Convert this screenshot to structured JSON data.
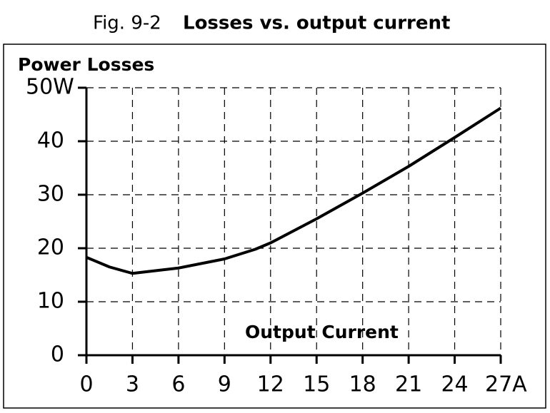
{
  "chart_data": {
    "type": "line",
    "figure_label": "Fig. 9-2",
    "title": "Losses vs. output current",
    "y_label": "Power Losses",
    "x_label": "Output Current",
    "x": [
      0,
      1.5,
      3,
      6,
      9,
      11,
      12,
      15,
      18,
      21,
      24,
      27
    ],
    "series": [
      {
        "color": "#000000",
        "values": [
          18.3,
          16.5,
          15.3,
          16.3,
          18,
          19.8,
          21,
          25.5,
          30.3,
          35.3,
          40.7,
          46.2
        ]
      }
    ],
    "xlim": [
      0,
      27
    ],
    "xticks": [
      0,
      3,
      6,
      9,
      12,
      15,
      18,
      21,
      {
        "value": 24,
        "label": "24"
      },
      {
        "value": 27,
        "label": "27A"
      }
    ],
    "ylim": [
      0,
      50
    ],
    "yticks": [
      0,
      10,
      20,
      30,
      40,
      {
        "value": 50,
        "label": "50W"
      }
    ],
    "grid": true
  }
}
